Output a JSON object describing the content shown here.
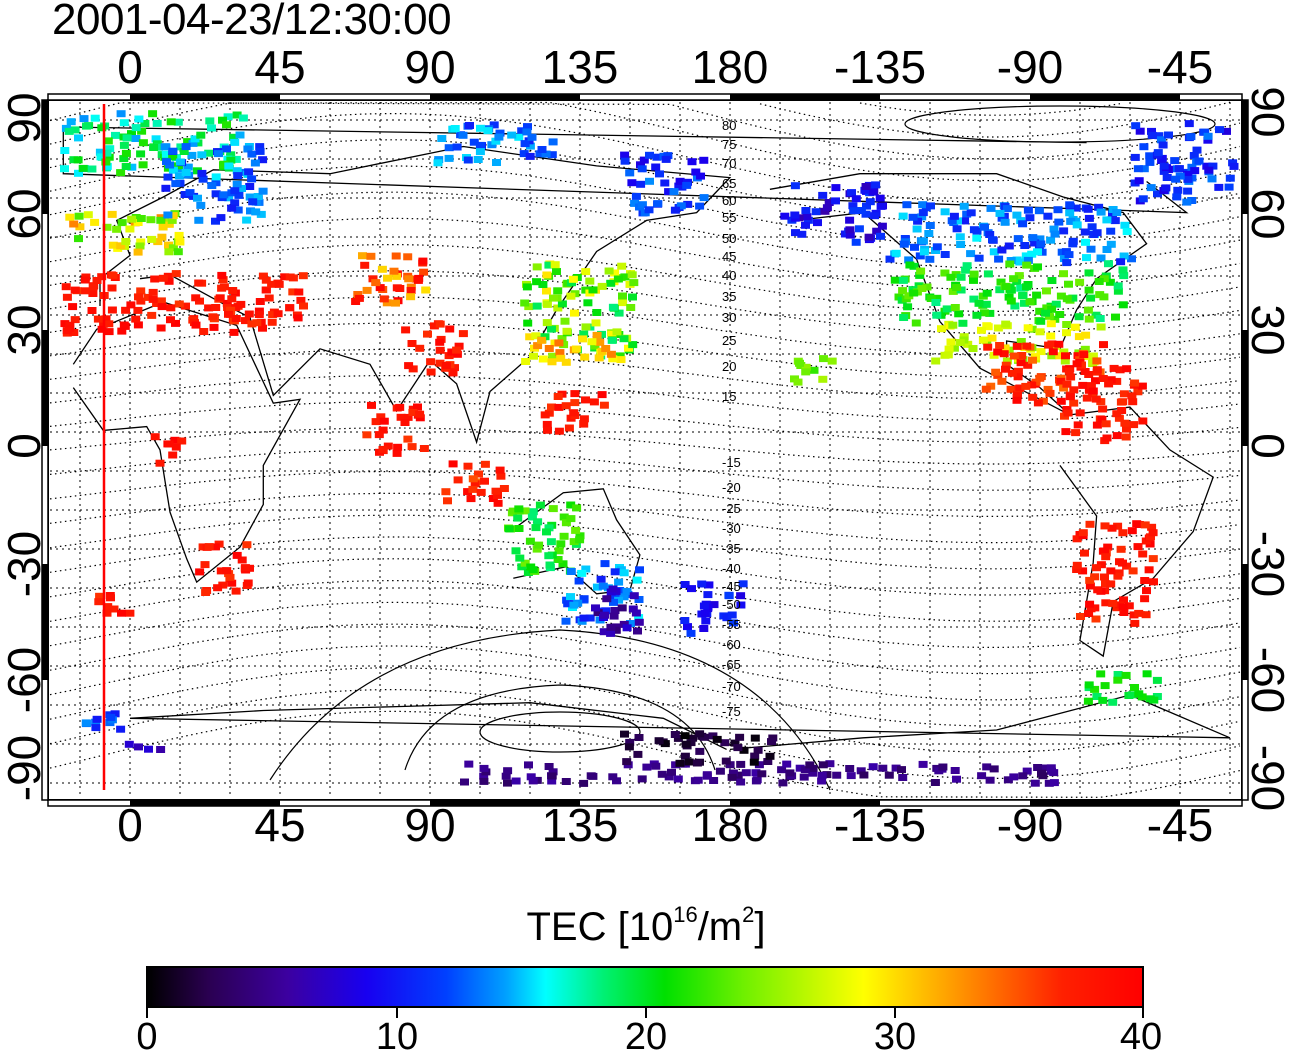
{
  "map": {
    "timestamp": "2001-04-23/12:30:00",
    "x_ticks": [
      "0",
      "45",
      "90",
      "135",
      "180",
      "-135",
      "-90",
      "-45"
    ],
    "y_ticks": [
      "90",
      "60",
      "30",
      "0",
      "-30",
      "-60",
      "-90"
    ],
    "contour_labels": [
      "80",
      "75",
      "70",
      "65",
      "60",
      "55",
      "50",
      "45",
      "40",
      "35",
      "30",
      "25",
      "20",
      "15",
      "-15",
      "-20",
      "-25",
      "-30",
      "-35",
      "-40",
      "-45",
      "-50",
      "-55",
      "-60",
      "-65",
      "-70",
      "-75"
    ],
    "line_color": "#ff0000",
    "ocean_color": "#ffffff"
  },
  "colorbar": {
    "title_prefix": "TEC [10",
    "title_exp": "16",
    "title_mid": "/m",
    "title_exp2": "2",
    "title_suffix": "]",
    "labels": [
      "0",
      "10",
      "20",
      "30",
      "40"
    ],
    "min": 0,
    "max": 40
  }
}
